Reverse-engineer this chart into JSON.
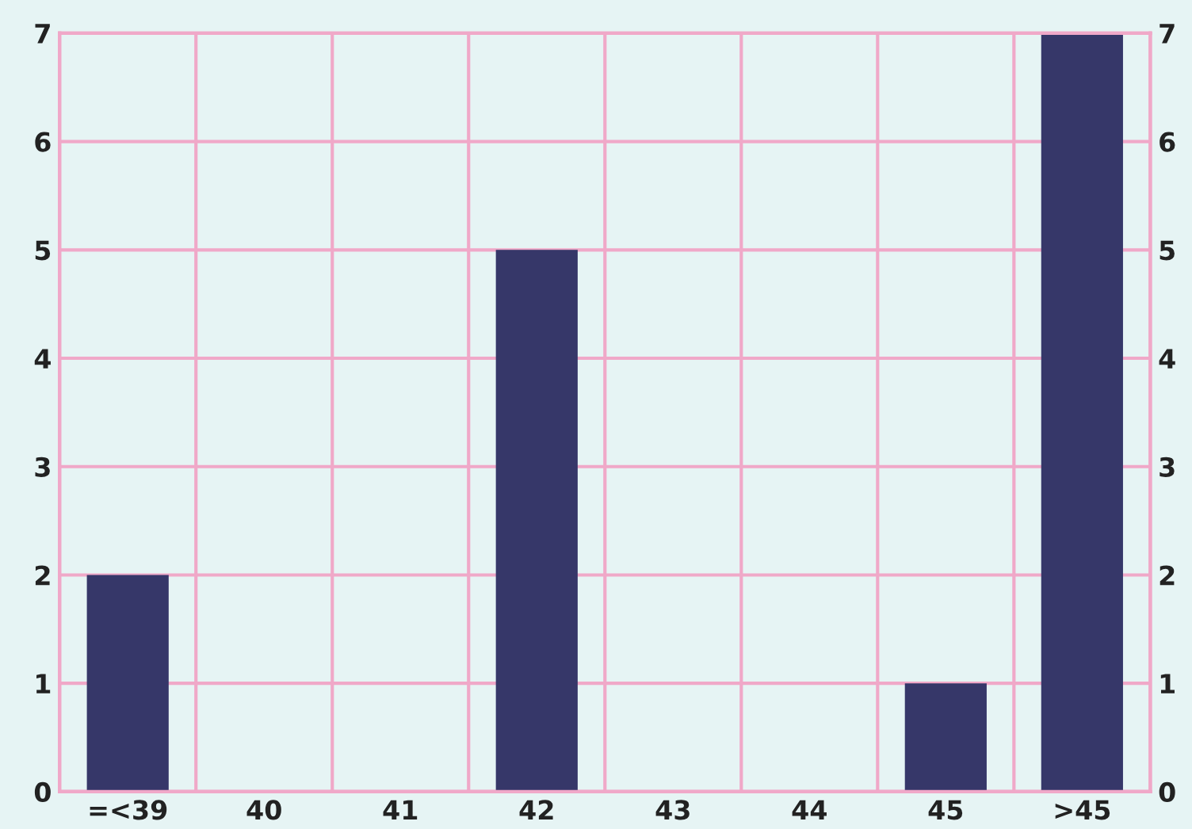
{
  "chart_data": {
    "type": "bar",
    "categories": [
      "=<39",
      "40",
      "41",
      "42",
      "43",
      "44",
      "45",
      ">45"
    ],
    "values": [
      2,
      0,
      0,
      5,
      0,
      0,
      1,
      7
    ],
    "color": "#363769",
    "ylim": [
      0,
      7
    ],
    "yticks": [
      0,
      1,
      2,
      3,
      4,
      5,
      6,
      7
    ],
    "y2lim": [
      0,
      7
    ],
    "y2ticks": [
      0,
      1,
      2,
      3,
      4,
      5,
      6,
      7
    ],
    "grid": true
  }
}
